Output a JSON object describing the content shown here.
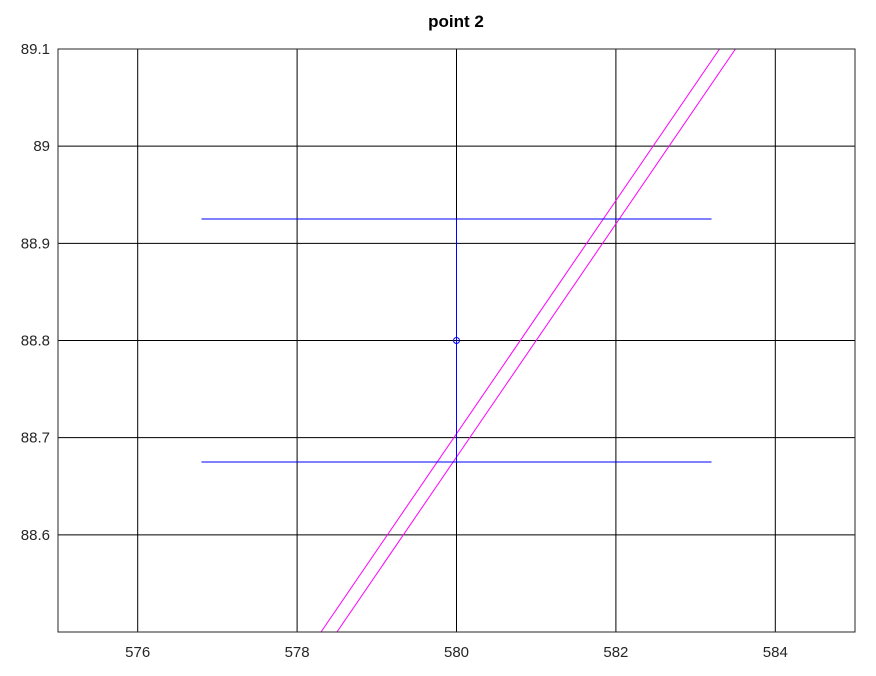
{
  "chart_data": {
    "type": "line",
    "title": "point 2",
    "xlabel": "",
    "ylabel": "",
    "xlim": [
      575,
      585
    ],
    "ylim": [
      88.5,
      89.1
    ],
    "x_ticks": [
      576,
      578,
      580,
      582,
      584
    ],
    "y_ticks": [
      88.6,
      88.7,
      88.8,
      88.9,
      89,
      89.1
    ],
    "x_tick_labels": [
      "576",
      "578",
      "580",
      "582",
      "584"
    ],
    "y_tick_labels": [
      "88.6",
      "88.7",
      "88.8",
      "88.9",
      "89",
      "89.1"
    ],
    "grid": true,
    "point": {
      "x": 580,
      "y": 88.8,
      "color": "#0000ff"
    },
    "error_bar": {
      "x": 580,
      "y_low": 88.675,
      "y_high": 88.925,
      "cap_x_min": 576.8,
      "cap_x_max": 583.2,
      "color": "#0000ff"
    },
    "series": [
      {
        "x": [
          578.3,
          583.3
        ],
        "y": [
          88.5,
          89.1
        ],
        "color": "#ff00ff"
      },
      {
        "x": [
          578.5,
          583.5
        ],
        "y": [
          88.5,
          89.1
        ],
        "color": "#ff00ff"
      }
    ]
  }
}
